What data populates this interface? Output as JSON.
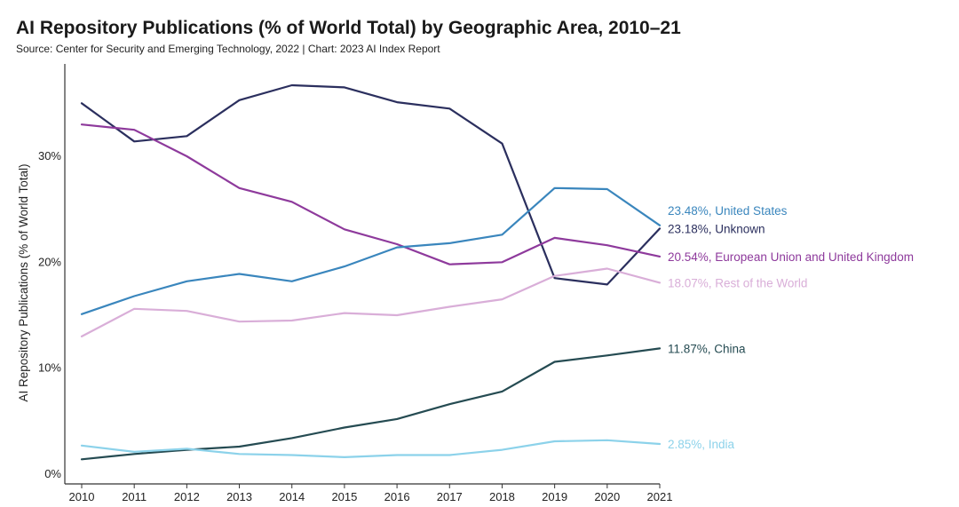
{
  "title": "AI Repository Publications (% of World Total) by Geographic Area, 2010–21",
  "subtitle": "Source: Center for Security and Emerging Technology, 2022 | Chart: 2023 AI Index Report",
  "chart_data": {
    "type": "line",
    "title": "AI Repository Publications (% of World Total) by Geographic Area, 2010–21",
    "subtitle": "Source: Center for Security and Emerging Technology, 2022 | Chart: 2023 AI Index Report",
    "ylabel": "AI Repository Publications (% of World Total)",
    "xlabel": "",
    "ylim": [
      0,
      37.5
    ],
    "xlim": [
      2010,
      2021
    ],
    "yticks": [
      0,
      10,
      20,
      30
    ],
    "ytick_labels": [
      "0%",
      "10%",
      "20%",
      "30%"
    ],
    "x": [
      2010,
      2011,
      2012,
      2013,
      2014,
      2015,
      2016,
      2017,
      2018,
      2019,
      2020,
      2021
    ],
    "x_labels": [
      "2010",
      "2011",
      "2012",
      "2013",
      "2014",
      "2015",
      "2016",
      "2017",
      "2018",
      "2019",
      "2020",
      "2021"
    ],
    "grid": false,
    "legend": "end-of-line labels",
    "series": [
      {
        "name": "Unknown",
        "label": "23.18%, Unknown",
        "color": "#2b2f5e",
        "values": [
          35.0,
          31.4,
          31.9,
          35.3,
          36.7,
          36.5,
          35.1,
          34.5,
          31.2,
          18.5,
          17.9,
          23.18
        ]
      },
      {
        "name": "European Union and United Kingdom",
        "label": "20.54%, European Union and United Kingdom",
        "color": "#8e3a9c",
        "values": [
          33.0,
          32.5,
          30.0,
          27.0,
          25.7,
          23.1,
          21.7,
          19.8,
          20.0,
          22.3,
          21.6,
          20.54
        ]
      },
      {
        "name": "United States",
        "label": "23.48%, United States",
        "color": "#3a86bd",
        "values": [
          15.1,
          16.8,
          18.2,
          18.9,
          18.2,
          19.6,
          21.4,
          21.8,
          22.6,
          27.0,
          26.9,
          23.48
        ]
      },
      {
        "name": "Rest of the World",
        "label": "18.07%, Rest of the World",
        "color": "#d9aed8",
        "values": [
          13.0,
          15.6,
          15.4,
          14.4,
          14.5,
          15.2,
          15.0,
          15.8,
          16.5,
          18.7,
          19.4,
          18.07
        ]
      },
      {
        "name": "China",
        "label": "11.87%, China",
        "color": "#254b52",
        "values": [
          1.4,
          1.9,
          2.3,
          2.6,
          3.4,
          4.4,
          5.2,
          6.6,
          7.8,
          10.6,
          11.2,
          11.87
        ]
      },
      {
        "name": "India",
        "label": "2.85%, India",
        "color": "#8cd2ea",
        "values": [
          2.7,
          2.1,
          2.4,
          1.9,
          1.8,
          1.6,
          1.8,
          1.8,
          2.3,
          3.1,
          3.2,
          2.85
        ]
      }
    ]
  }
}
